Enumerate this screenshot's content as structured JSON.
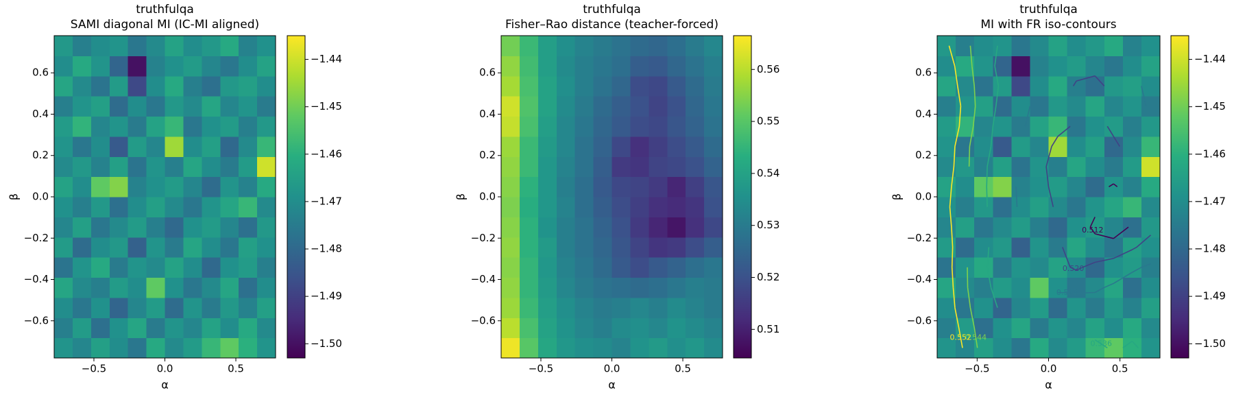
{
  "chart_data": [
    {
      "type": "heatmap",
      "title": "truthfulqa",
      "subtitle": "SAMI diagonal MI (IC-MI aligned)",
      "xlabel": "α",
      "ylabel": "β",
      "xlim": [
        -0.78,
        0.78
      ],
      "ylim": [
        -0.78,
        0.78
      ],
      "xticks": [
        {
          "value": -0.5,
          "label": "−0.5"
        },
        {
          "value": 0,
          "label": "0.0"
        },
        0.5
      ],
      "yticks": [
        {
          "value": -0.6,
          "label": "−0.6"
        },
        {
          "value": -0.4,
          "label": "−0.4"
        },
        {
          "value": -0.2,
          "label": "−0.2"
        },
        {
          "value": 0,
          "label": "0.0"
        },
        0.2,
        0.4,
        0.6
      ],
      "colormap": "viridis",
      "clim": [
        -1.503,
        -1.435
      ],
      "cticks": [
        {
          "value": -1.5,
          "label": "−1.50"
        },
        {
          "value": -1.49,
          "label": "−1.49"
        },
        {
          "value": -1.48,
          "label": "−1.48"
        },
        {
          "value": -1.47,
          "label": "−1.47"
        },
        {
          "value": -1.46,
          "label": "−1.46"
        },
        {
          "value": -1.45,
          "label": "−1.45"
        },
        {
          "value": -1.44,
          "label": "−1.44"
        }
      ],
      "z": [
        [
          -1.468,
          -1.472,
          -1.465,
          -1.47,
          -1.476,
          -1.462,
          -1.471,
          -1.466,
          -1.458,
          -1.452,
          -1.46,
          -1.468
        ],
        [
          -1.474,
          -1.466,
          -1.478,
          -1.469,
          -1.463,
          -1.475,
          -1.468,
          -1.472,
          -1.464,
          -1.47,
          -1.462,
          -1.471
        ],
        [
          -1.47,
          -1.476,
          -1.469,
          -1.481,
          -1.472,
          -1.466,
          -1.479,
          -1.468,
          -1.475,
          -1.467,
          -1.473,
          -1.465
        ],
        [
          -1.463,
          -1.471,
          -1.474,
          -1.466,
          -1.47,
          -1.452,
          -1.469,
          -1.476,
          -1.471,
          -1.463,
          -1.478,
          -1.47
        ],
        [
          -1.477,
          -1.468,
          -1.462,
          -1.475,
          -1.468,
          -1.471,
          -1.464,
          -1.47,
          -1.48,
          -1.469,
          -1.466,
          -1.474
        ],
        [
          -1.466,
          -1.479,
          -1.47,
          -1.467,
          -1.482,
          -1.468,
          -1.475,
          -1.463,
          -1.47,
          -1.476,
          -1.465,
          -1.469
        ],
        [
          -1.472,
          -1.465,
          -1.476,
          -1.471,
          -1.466,
          -1.474,
          -1.48,
          -1.469,
          -1.466,
          -1.472,
          -1.478,
          -1.467
        ],
        [
          -1.469,
          -1.474,
          -1.467,
          -1.478,
          -1.47,
          -1.465,
          -1.471,
          -1.476,
          -1.468,
          -1.463,
          -1.458,
          -1.471
        ],
        [
          -1.464,
          -1.47,
          -1.452,
          -1.448,
          -1.473,
          -1.469,
          -1.466,
          -1.472,
          -1.479,
          -1.468,
          -1.473,
          -1.462
        ],
        [
          -1.471,
          -1.467,
          -1.473,
          -1.465,
          -1.477,
          -1.468,
          -1.474,
          -1.463,
          -1.47,
          -1.475,
          -1.466,
          -1.44
        ],
        [
          -1.468,
          -1.476,
          -1.47,
          -1.484,
          -1.466,
          -1.472,
          -1.445,
          -1.47,
          -1.465,
          -1.48,
          -1.471,
          -1.458
        ],
        [
          -1.466,
          -1.459,
          -1.472,
          -1.468,
          -1.475,
          -1.464,
          -1.458,
          -1.476,
          -1.469,
          -1.466,
          -1.474,
          -1.467
        ],
        [
          -1.474,
          -1.468,
          -1.465,
          -1.479,
          -1.47,
          -1.476,
          -1.467,
          -1.471,
          -1.463,
          -1.472,
          -1.468,
          -1.475
        ],
        [
          -1.463,
          -1.471,
          -1.477,
          -1.466,
          -1.488,
          -1.47,
          -1.462,
          -1.474,
          -1.478,
          -1.467,
          -1.465,
          -1.47
        ],
        [
          -1.47,
          -1.462,
          -1.468,
          -1.481,
          -1.5,
          -1.473,
          -1.469,
          -1.466,
          -1.472,
          -1.476,
          -1.47,
          -1.464
        ],
        [
          -1.467,
          -1.474,
          -1.47,
          -1.468,
          -1.476,
          -1.471,
          -1.464,
          -1.47,
          -1.467,
          -1.462,
          -1.473,
          -1.469
        ]
      ]
    },
    {
      "type": "heatmap",
      "title": "truthfulqa",
      "subtitle": "Fisher–Rao distance (teacher-forced)",
      "xlabel": "α",
      "ylabel": "β",
      "xlim": [
        -0.78,
        0.78
      ],
      "ylim": [
        -0.78,
        0.78
      ],
      "xticks": [
        {
          "value": -0.5,
          "label": "−0.5"
        },
        {
          "value": 0,
          "label": "0.0"
        },
        0.5
      ],
      "yticks": [
        {
          "value": -0.6,
          "label": "−0.6"
        },
        {
          "value": -0.4,
          "label": "−0.4"
        },
        {
          "value": -0.2,
          "label": "−0.2"
        },
        {
          "value": 0,
          "label": "0.0"
        },
        0.2,
        0.4,
        0.6
      ],
      "colormap": "viridis",
      "clim": [
        0.5045,
        0.5665
      ],
      "cticks": [
        0.51,
        0.52,
        0.53,
        0.54,
        0.55,
        0.56
      ],
      "z": [
        [
          0.565,
          0.55,
          0.541,
          0.537,
          0.535,
          0.534,
          0.532,
          0.536,
          0.538,
          0.535,
          0.537,
          0.534
        ],
        [
          0.56,
          0.548,
          0.54,
          0.536,
          0.533,
          0.531,
          0.534,
          0.535,
          0.533,
          0.536,
          0.534,
          0.532
        ],
        [
          0.557,
          0.546,
          0.539,
          0.535,
          0.532,
          0.53,
          0.531,
          0.533,
          0.531,
          0.534,
          0.532,
          0.53
        ],
        [
          0.556,
          0.545,
          0.538,
          0.533,
          0.53,
          0.528,
          0.527,
          0.526,
          0.527,
          0.529,
          0.531,
          0.53
        ],
        [
          0.555,
          0.545,
          0.537,
          0.532,
          0.529,
          0.526,
          0.522,
          0.519,
          0.522,
          0.524,
          0.527,
          0.529
        ],
        [
          0.556,
          0.544,
          0.538,
          0.531,
          0.528,
          0.525,
          0.521,
          0.517,
          0.514,
          0.515,
          0.519,
          0.523
        ],
        [
          0.555,
          0.544,
          0.536,
          0.531,
          0.528,
          0.524,
          0.52,
          0.515,
          0.511,
          0.508,
          0.513,
          0.518
        ],
        [
          0.554,
          0.543,
          0.537,
          0.532,
          0.527,
          0.523,
          0.519,
          0.516,
          0.513,
          0.512,
          0.514,
          0.52
        ],
        [
          0.555,
          0.544,
          0.537,
          0.531,
          0.527,
          0.522,
          0.518,
          0.517,
          0.515,
          0.511,
          0.516,
          0.521
        ],
        [
          0.556,
          0.546,
          0.537,
          0.532,
          0.528,
          0.523,
          0.515,
          0.514,
          0.517,
          0.518,
          0.52,
          0.524
        ],
        [
          0.557,
          0.546,
          0.538,
          0.533,
          0.528,
          0.524,
          0.518,
          0.513,
          0.516,
          0.519,
          0.522,
          0.526
        ],
        [
          0.561,
          0.548,
          0.539,
          0.533,
          0.529,
          0.525,
          0.522,
          0.519,
          0.518,
          0.521,
          0.524,
          0.528
        ],
        [
          0.562,
          0.549,
          0.54,
          0.534,
          0.53,
          0.526,
          0.523,
          0.52,
          0.517,
          0.52,
          0.525,
          0.529
        ],
        [
          0.558,
          0.548,
          0.54,
          0.535,
          0.531,
          0.528,
          0.525,
          0.519,
          0.518,
          0.522,
          0.526,
          0.53
        ],
        [
          0.556,
          0.547,
          0.539,
          0.534,
          0.531,
          0.529,
          0.527,
          0.523,
          0.522,
          0.525,
          0.528,
          0.531
        ],
        [
          0.553,
          0.546,
          0.539,
          0.535,
          0.532,
          0.53,
          0.528,
          0.526,
          0.525,
          0.527,
          0.53,
          0.533
        ]
      ]
    },
    {
      "type": "heatmap",
      "title": "truthfulqa",
      "subtitle": "MI with FR iso-contours",
      "xlabel": "α",
      "ylabel": "β",
      "xlim": [
        -0.78,
        0.78
      ],
      "ylim": [
        -0.78,
        0.78
      ],
      "xticks": [
        {
          "value": -0.5,
          "label": "−0.5"
        },
        {
          "value": 0,
          "label": "0.0"
        },
        0.5
      ],
      "yticks": [
        {
          "value": -0.6,
          "label": "−0.6"
        },
        {
          "value": -0.4,
          "label": "−0.4"
        },
        {
          "value": -0.2,
          "label": "−0.2"
        },
        {
          "value": 0,
          "label": "0.0"
        },
        0.2,
        0.4,
        0.6
      ],
      "colormap": "viridis",
      "clim": [
        -1.503,
        -1.435
      ],
      "cticks": [
        {
          "value": -1.5,
          "label": "−1.50"
        },
        {
          "value": -1.49,
          "label": "−1.49"
        },
        {
          "value": -1.48,
          "label": "−1.48"
        },
        {
          "value": -1.47,
          "label": "−1.47"
        },
        {
          "value": -1.46,
          "label": "−1.46"
        },
        {
          "value": -1.45,
          "label": "−1.45"
        },
        {
          "value": -1.44,
          "label": "−1.44"
        }
      ],
      "contour_levels": [
        {
          "value": 0.512,
          "label": "0.512"
        },
        {
          "value": 0.52,
          "label": "0.520"
        },
        {
          "value": 0.528,
          "label": "0.528"
        },
        {
          "value": 0.536,
          "label": "0.536"
        },
        {
          "value": 0.544,
          "label": "0.544"
        },
        {
          "value": 0.552,
          "label": "0.552"
        }
      ],
      "z": [
        [
          -1.468,
          -1.472,
          -1.465,
          -1.47,
          -1.476,
          -1.462,
          -1.471,
          -1.466,
          -1.458,
          -1.452,
          -1.46,
          -1.468
        ],
        [
          -1.474,
          -1.466,
          -1.478,
          -1.469,
          -1.463,
          -1.475,
          -1.468,
          -1.472,
          -1.464,
          -1.47,
          -1.462,
          -1.471
        ],
        [
          -1.47,
          -1.476,
          -1.469,
          -1.481,
          -1.472,
          -1.466,
          -1.479,
          -1.468,
          -1.475,
          -1.467,
          -1.473,
          -1.465
        ],
        [
          -1.463,
          -1.471,
          -1.474,
          -1.466,
          -1.47,
          -1.452,
          -1.469,
          -1.476,
          -1.471,
          -1.463,
          -1.478,
          -1.47
        ],
        [
          -1.477,
          -1.468,
          -1.462,
          -1.475,
          -1.468,
          -1.471,
          -1.464,
          -1.47,
          -1.48,
          -1.469,
          -1.466,
          -1.474
        ],
        [
          -1.466,
          -1.479,
          -1.47,
          -1.467,
          -1.482,
          -1.468,
          -1.475,
          -1.463,
          -1.47,
          -1.476,
          -1.465,
          -1.469
        ],
        [
          -1.472,
          -1.465,
          -1.476,
          -1.471,
          -1.466,
          -1.474,
          -1.48,
          -1.469,
          -1.466,
          -1.472,
          -1.478,
          -1.467
        ],
        [
          -1.469,
          -1.474,
          -1.467,
          -1.478,
          -1.47,
          -1.465,
          -1.471,
          -1.476,
          -1.468,
          -1.463,
          -1.458,
          -1.471
        ],
        [
          -1.464,
          -1.47,
          -1.452,
          -1.448,
          -1.473,
          -1.469,
          -1.466,
          -1.472,
          -1.479,
          -1.468,
          -1.473,
          -1.462
        ],
        [
          -1.471,
          -1.467,
          -1.473,
          -1.465,
          -1.477,
          -1.468,
          -1.474,
          -1.463,
          -1.47,
          -1.475,
          -1.466,
          -1.44
        ],
        [
          -1.468,
          -1.476,
          -1.47,
          -1.484,
          -1.466,
          -1.472,
          -1.445,
          -1.47,
          -1.465,
          -1.48,
          -1.471,
          -1.458
        ],
        [
          -1.466,
          -1.459,
          -1.472,
          -1.468,
          -1.475,
          -1.464,
          -1.458,
          -1.476,
          -1.469,
          -1.466,
          -1.474,
          -1.467
        ],
        [
          -1.474,
          -1.468,
          -1.465,
          -1.479,
          -1.47,
          -1.476,
          -1.467,
          -1.471,
          -1.463,
          -1.472,
          -1.468,
          -1.475
        ],
        [
          -1.463,
          -1.471,
          -1.477,
          -1.466,
          -1.488,
          -1.47,
          -1.462,
          -1.474,
          -1.478,
          -1.467,
          -1.465,
          -1.47
        ],
        [
          -1.47,
          -1.462,
          -1.468,
          -1.481,
          -1.5,
          -1.473,
          -1.469,
          -1.466,
          -1.472,
          -1.476,
          -1.47,
          -1.464
        ],
        [
          -1.467,
          -1.474,
          -1.47,
          -1.468,
          -1.476,
          -1.471,
          -1.464,
          -1.47,
          -1.467,
          -1.462,
          -1.473,
          -1.469
        ]
      ]
    }
  ]
}
